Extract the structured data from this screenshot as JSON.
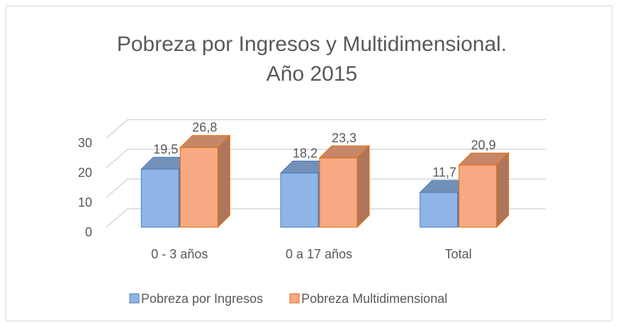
{
  "chart_data": {
    "type": "bar3d",
    "title": [
      "Pobreza por Ingresos y Multidimensional.",
      "Año 2015"
    ],
    "categories": [
      "0 - 3 años",
      "0 a 17 años",
      "Total"
    ],
    "series": [
      {
        "name": "Pobreza por Ingresos",
        "color": "#8fb4e6",
        "values": [
          19.5,
          18.2,
          11.7
        ],
        "value_labels": [
          "19,5",
          "18,2",
          "11,7"
        ]
      },
      {
        "name": "Pobreza Multidimensional",
        "color": "#f7a983",
        "values": [
          26.8,
          23.3,
          20.9
        ],
        "value_labels": [
          "26,8",
          "23,3",
          "20,9"
        ]
      }
    ],
    "ylim": [
      0,
      30
    ],
    "yticks": [
      0,
      10,
      20,
      30
    ],
    "grid": true,
    "legend": "bottom"
  }
}
